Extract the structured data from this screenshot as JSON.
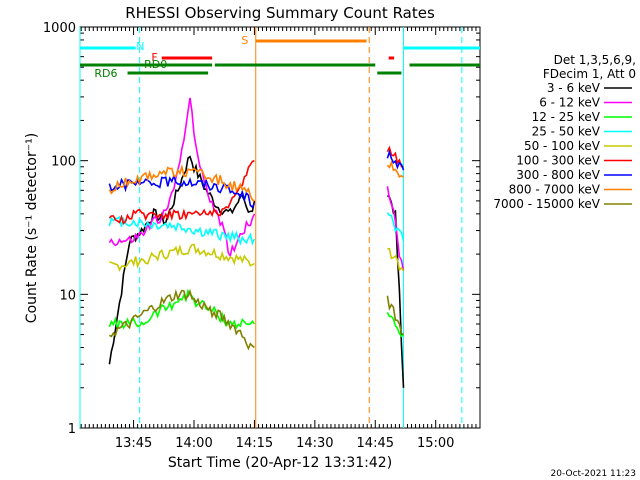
{
  "chart_data": {
    "type": "line",
    "title": "RHESSI Observing Summary Count Rates",
    "xlabel": "Start Time (20-Apr-12 13:31:42)",
    "ylabel": "Count Rate (s⁻¹ detector⁻¹)",
    "y_scale": "log",
    "ylim": [
      1,
      1000
    ],
    "xlim": [
      "13:31:42",
      "15:11:00"
    ],
    "x_ticks": [
      "13:45",
      "14:00",
      "14:15",
      "14:30",
      "14:45",
      "15:00"
    ],
    "y_ticks": [
      "1",
      "10",
      "100",
      "1000"
    ],
    "legend_header": [
      "Det 1,3,5,6,9,",
      "FDecim 1, Att 0"
    ],
    "legend_position": "right",
    "timestamp": "20-Oct-2021 11:23",
    "bar_labels": {
      "night": "N",
      "flare": "F",
      "saa": "S",
      "rd0": "RD0",
      "rd6": "RD6"
    },
    "bar_colors": {
      "night": "#00ffff",
      "flare": "#ff0000",
      "saa": "#ff8000",
      "decim": "#008000"
    },
    "series": [
      {
        "name": "3 - 6 keV",
        "color": "#000000",
        "x": [
          "13:39",
          "13:44",
          "13:47",
          "13:50",
          "13:53",
          "13:56",
          "13:59",
          "14:00",
          "14:03",
          "14:06",
          "14:09",
          "14:12",
          "14:14",
          "14:15",
          "14:48",
          "14:50",
          "14:51",
          "14:52"
        ],
        "y": [
          3,
          25,
          30,
          40,
          35,
          60,
          110,
          90,
          60,
          45,
          40,
          55,
          40,
          50,
          60,
          40,
          10,
          2
        ]
      },
      {
        "name": "6 - 12 keV",
        "color": "#ff00ff",
        "x": [
          "13:39",
          "13:44",
          "13:47",
          "13:50",
          "13:53",
          "13:56",
          "13:59",
          "14:00",
          "14:03",
          "14:06",
          "14:09",
          "14:12",
          "14:14",
          "14:15",
          "14:48",
          "14:50",
          "14:51",
          "14:52"
        ],
        "y": [
          25,
          25,
          28,
          35,
          40,
          80,
          300,
          150,
          60,
          40,
          20,
          30,
          35,
          40,
          60,
          35,
          20,
          15
        ]
      },
      {
        "name": "12 - 25 keV",
        "color": "#00ff00",
        "x": [
          "13:39",
          "13:44",
          "13:47",
          "13:50",
          "13:53",
          "13:56",
          "13:59",
          "14:00",
          "14:03",
          "14:06",
          "14:09",
          "14:12",
          "14:14",
          "14:15",
          "14:48",
          "14:50",
          "14:51",
          "14:52"
        ],
        "y": [
          6,
          6,
          6,
          7,
          8,
          9,
          10,
          9,
          8,
          7,
          6,
          6,
          6,
          6,
          7,
          6,
          5,
          5
        ]
      },
      {
        "name": "25 - 50 keV",
        "color": "#00ffff",
        "x": [
          "13:39",
          "13:44",
          "13:47",
          "13:50",
          "13:53",
          "13:56",
          "13:59",
          "14:00",
          "14:03",
          "14:06",
          "14:09",
          "14:12",
          "14:14",
          "14:15",
          "14:48",
          "14:50",
          "14:51",
          "14:52"
        ],
        "y": [
          35,
          35,
          34,
          33,
          33,
          32,
          31,
          30,
          29,
          28,
          27,
          26,
          26,
          26,
          40,
          32,
          28,
          25
        ]
      },
      {
        "name": "50 - 100 keV",
        "color": "#c8c800",
        "x": [
          "13:39",
          "13:44",
          "13:47",
          "13:50",
          "13:53",
          "13:56",
          "13:59",
          "14:00",
          "14:03",
          "14:06",
          "14:09",
          "14:12",
          "14:14",
          "14:15",
          "14:48",
          "14:50",
          "14:51",
          "14:52"
        ],
        "y": [
          16,
          17,
          18,
          19,
          20,
          21,
          22,
          22,
          21,
          20,
          19,
          18,
          17,
          17,
          22,
          18,
          16,
          15
        ]
      },
      {
        "name": "100 - 300 keV",
        "color": "#ff0000",
        "x": [
          "13:39",
          "13:44",
          "13:47",
          "13:50",
          "13:53",
          "13:56",
          "13:59",
          "14:00",
          "14:03",
          "14:06",
          "14:09",
          "14:12",
          "14:14",
          "14:15",
          "14:48",
          "14:50",
          "14:51",
          "14:52"
        ],
        "y": [
          35,
          38,
          40,
          40,
          40,
          40,
          40,
          40,
          40,
          42,
          45,
          70,
          90,
          100,
          120,
          110,
          100,
          90
        ]
      },
      {
        "name": "300 - 800 keV",
        "color": "#0000ff",
        "x": [
          "13:39",
          "13:44",
          "13:47",
          "13:50",
          "13:53",
          "13:56",
          "13:59",
          "14:00",
          "14:03",
          "14:06",
          "14:09",
          "14:12",
          "14:14",
          "14:15",
          "14:48",
          "14:50",
          "14:51",
          "14:52"
        ],
        "y": [
          65,
          66,
          67,
          68,
          70,
          71,
          70,
          69,
          67,
          64,
          60,
          55,
          50,
          48,
          110,
          100,
          90,
          85
        ]
      },
      {
        "name": "800 - 7000 keV",
        "color": "#ff8000",
        "x": [
          "13:39",
          "13:44",
          "13:47",
          "13:50",
          "13:53",
          "13:56",
          "13:59",
          "14:00",
          "14:03",
          "14:06",
          "14:09",
          "14:12",
          "14:14",
          "14:15",
          "14:48",
          "14:50",
          "14:51",
          "14:52"
        ],
        "y": [
          60,
          70,
          75,
          80,
          82,
          83,
          82,
          80,
          77,
          72,
          66,
          60,
          55,
          50,
          100,
          90,
          80,
          75
        ]
      },
      {
        "name": "7000 - 15000 keV",
        "color": "#808000",
        "x": [
          "13:39",
          "13:44",
          "13:47",
          "13:50",
          "13:53",
          "13:56",
          "13:59",
          "14:00",
          "14:03",
          "14:06",
          "14:09",
          "14:12",
          "14:14",
          "14:15",
          "14:48",
          "14:50",
          "14:51",
          "14:52"
        ],
        "y": [
          5,
          6,
          7,
          8,
          9,
          10,
          10,
          9,
          8,
          7,
          6,
          5,
          4,
          4,
          9,
          7,
          6,
          5
        ]
      }
    ]
  }
}
